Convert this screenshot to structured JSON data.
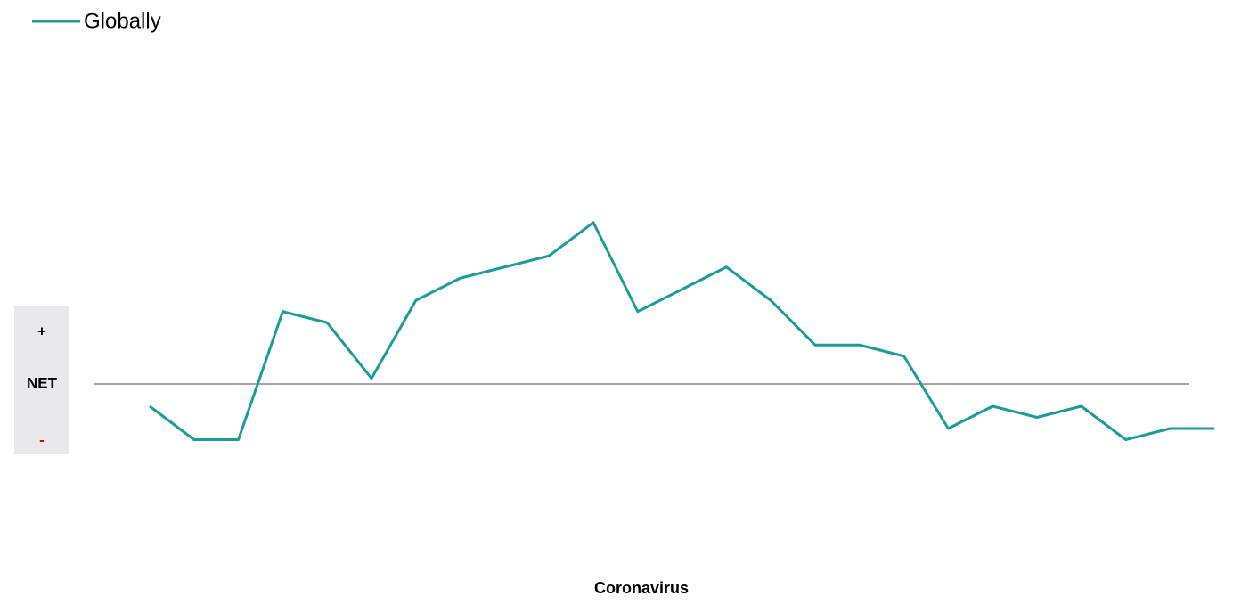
{
  "chart_data": {
    "type": "line",
    "x_label": "Coronavirus",
    "annotations": [
      "+",
      "-"
    ],
    "categories": [
      null,
      null,
      null,
      null,
      null,
      null,
      null,
      null,
      null,
      null,
      null,
      null,
      null,
      null,
      null,
      null,
      null,
      null,
      null,
      null,
      null,
      null,
      null,
      null,
      null
    ],
    "series": [
      {
        "name": "Globally",
        "color": "#1a9c9c",
        "values": [
          -2,
          -5,
          -5,
          6.5,
          5.5,
          0.5,
          7.5,
          9.5,
          10.5,
          11.5,
          14.5,
          6.5,
          8.5,
          10.5,
          7.5,
          3.5,
          3.5,
          2.5,
          -4,
          -2,
          -3,
          -2,
          -5,
          -4,
          -4
        ]
      }
    ],
    "ylim": [
      -8,
      16
    ],
    "yticks": [
      {
        "value": 0,
        "label": "NET"
      }
    ],
    "grid": true,
    "legend": "top-left"
  }
}
